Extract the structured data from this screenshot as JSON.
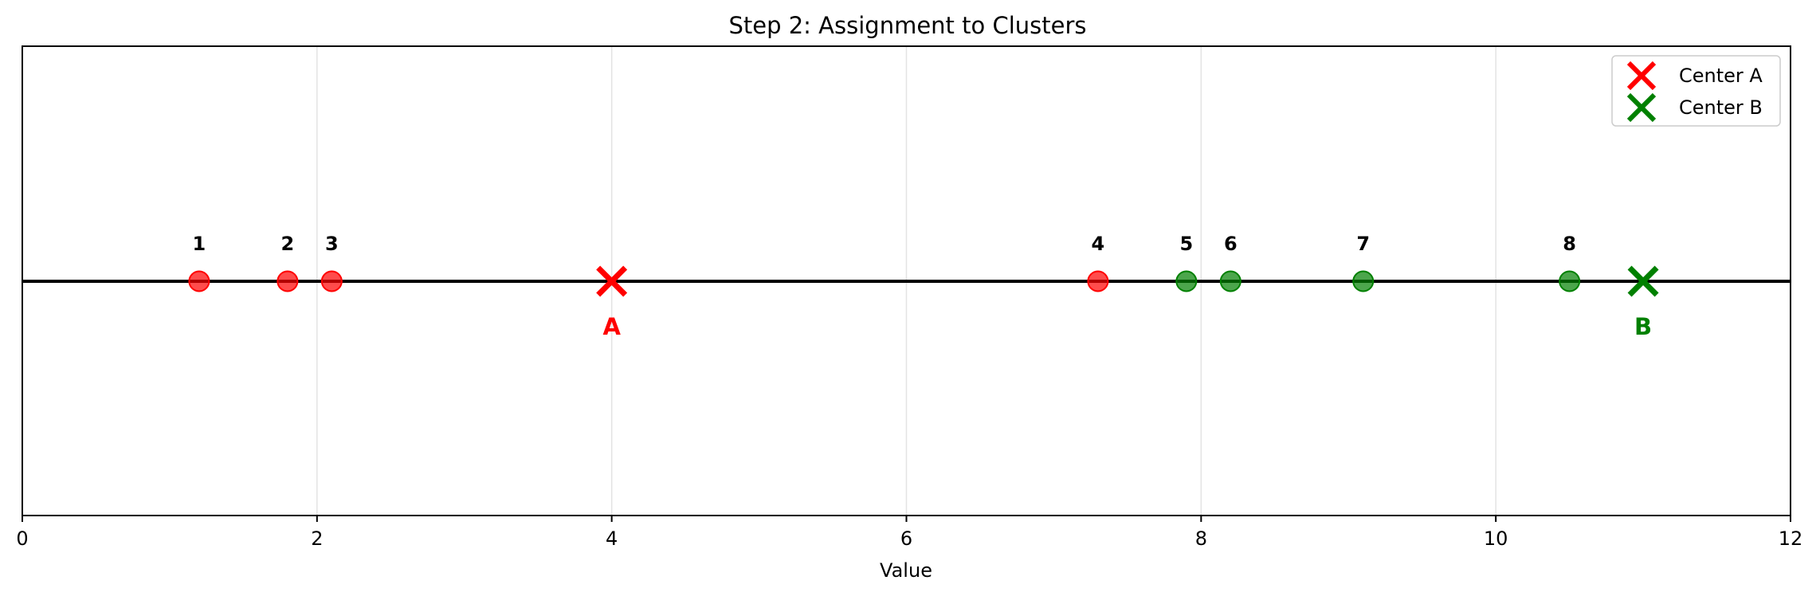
{
  "chart_data": {
    "type": "scatter",
    "title": "Step 2: Assignment to Clusters",
    "xlabel": "Value",
    "ylabel": "",
    "xlim": [
      0,
      12
    ],
    "x_ticks": [
      0,
      2,
      4,
      6,
      8,
      10,
      12
    ],
    "grid": "vertical",
    "legend_placement": "top-right",
    "colors": {
      "cluster_a": "#ff0000",
      "cluster_b": "#008000",
      "baseline": "#000000"
    },
    "points": [
      {
        "label": "1",
        "x": 1.2,
        "cluster": "A"
      },
      {
        "label": "2",
        "x": 1.8,
        "cluster": "A"
      },
      {
        "label": "3",
        "x": 2.1,
        "cluster": "A"
      },
      {
        "label": "4",
        "x": 7.3,
        "cluster": "A"
      },
      {
        "label": "5",
        "x": 7.9,
        "cluster": "B"
      },
      {
        "label": "6",
        "x": 8.2,
        "cluster": "B"
      },
      {
        "label": "7",
        "x": 9.1,
        "cluster": "B"
      },
      {
        "label": "8",
        "x": 10.5,
        "cluster": "B"
      }
    ],
    "centers": [
      {
        "label": "A",
        "x": 4,
        "legend": "Center A",
        "cluster": "A"
      },
      {
        "label": "B",
        "x": 11,
        "legend": "Center B",
        "cluster": "B"
      }
    ]
  }
}
